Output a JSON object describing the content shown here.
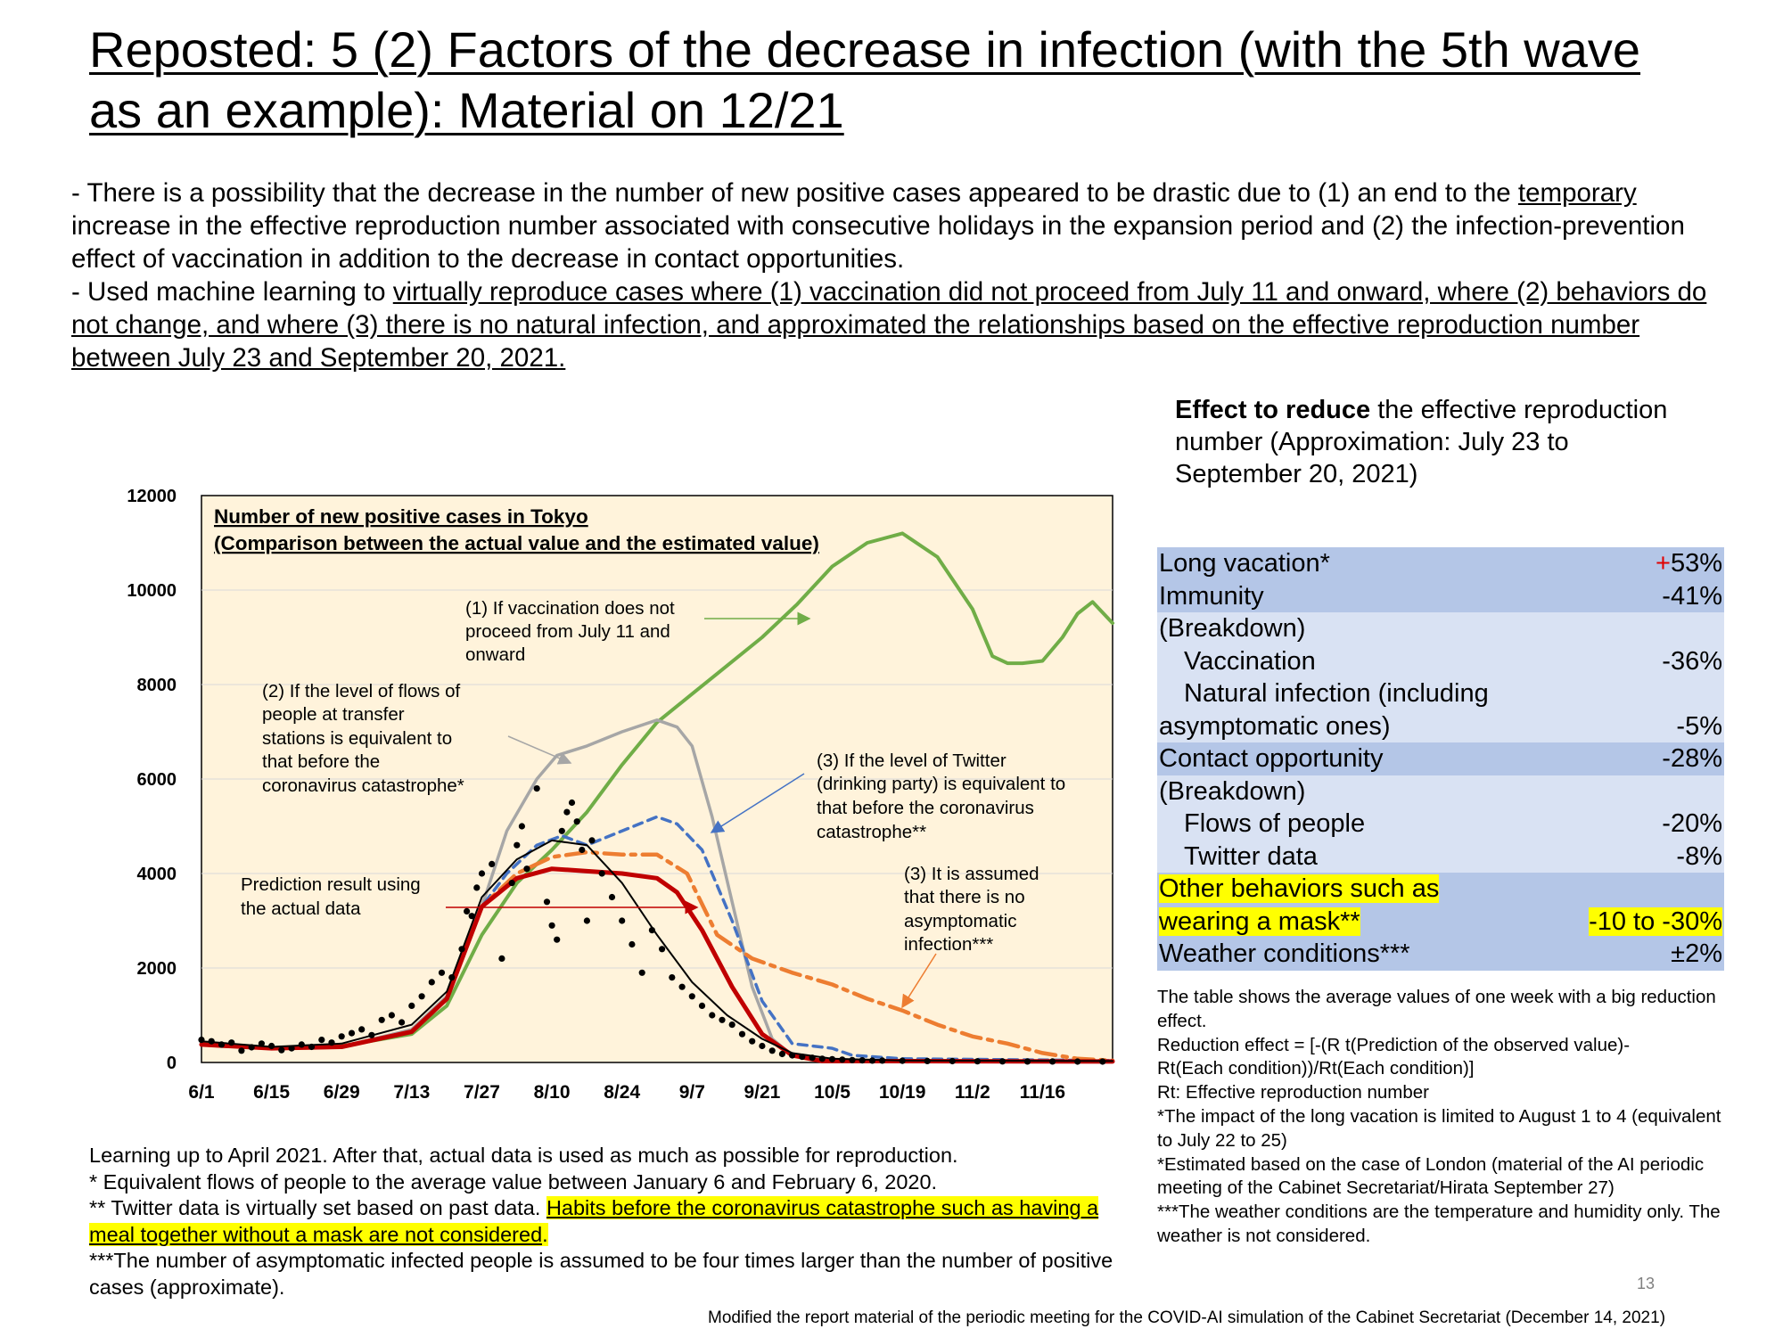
{
  "title": "Reposted: 5 (2) Factors of the decrease in infection (with the 5th wave as an example): Material on 12/21",
  "intro": {
    "p1_a": "- There is a possibility that the decrease in the number of new positive cases appeared to be drastic due to (1) an end to the ",
    "p1_u": "temporary",
    "p1_b": " increase in the effective reproduction number associated with consecutive holidays in the expansion period and (2) the infection-prevention effect of vaccination in addition to the decrease in contact opportunities.",
    "p2_a": "- Used machine learning to ",
    "p2_u": "virtually reproduce cases where (1) vaccination did not proceed from July 11 and onward, where (2) behaviors do not change, and where (3) there is no natural infection, and approximated the relationships based on the effective reproduction number between July 23 and September 20, 2021."
  },
  "chart_data": {
    "type": "line",
    "title": "Number of new positive cases in Tokyo",
    "subtitle": "(Comparison between the actual value and the estimated value)",
    "xlabel": "",
    "ylabel": "",
    "x_ticks": [
      "6/1",
      "6/15",
      "6/29",
      "7/13",
      "7/27",
      "8/10",
      "8/24",
      "9/7",
      "9/21",
      "10/5",
      "10/19",
      "11/2",
      "11/16"
    ],
    "y_ticks": [
      "0",
      "2000",
      "4000",
      "6000",
      "8000",
      "10000",
      "12000"
    ],
    "ylim": [
      0,
      12000
    ],
    "x_range_days": [
      0,
      182
    ],
    "background": "#fff3db",
    "series": [
      {
        "key": "vaccination",
        "color": "#70ad47",
        "style": "solid",
        "width": 4,
        "points": [
          [
            0,
            400
          ],
          [
            14,
            300
          ],
          [
            28,
            350
          ],
          [
            42,
            600
          ],
          [
            49,
            1200
          ],
          [
            56,
            2700
          ],
          [
            63,
            3800
          ],
          [
            70,
            4500
          ],
          [
            77,
            5300
          ],
          [
            84,
            6300
          ],
          [
            91,
            7200
          ],
          [
            98,
            7800
          ],
          [
            105,
            8400
          ],
          [
            112,
            9000
          ],
          [
            119,
            9700
          ],
          [
            126,
            10500
          ],
          [
            133,
            11000
          ],
          [
            140,
            11200
          ],
          [
            147,
            10700
          ],
          [
            154,
            9600
          ],
          [
            158,
            8600
          ],
          [
            161,
            8450
          ],
          [
            164,
            8450
          ],
          [
            168,
            8500
          ],
          [
            172,
            9000
          ],
          [
            175,
            9500
          ],
          [
            178,
            9750
          ],
          [
            182,
            9300
          ]
        ]
      },
      {
        "key": "flows",
        "color": "#a6a6a6",
        "style": "solid",
        "width": 3.5,
        "points": [
          [
            0,
            380
          ],
          [
            14,
            300
          ],
          [
            28,
            330
          ],
          [
            42,
            700
          ],
          [
            49,
            1400
          ],
          [
            56,
            3300
          ],
          [
            61,
            4900
          ],
          [
            67,
            6000
          ],
          [
            71,
            6500
          ],
          [
            77,
            6700
          ],
          [
            84,
            7000
          ],
          [
            91,
            7250
          ],
          [
            95,
            7100
          ],
          [
            98,
            6700
          ],
          [
            102,
            5200
          ],
          [
            106,
            3400
          ],
          [
            110,
            1600
          ],
          [
            114,
            500
          ],
          [
            118,
            150
          ],
          [
            122,
            60
          ],
          [
            130,
            30
          ]
        ]
      },
      {
        "key": "twitter",
        "color": "#4472c4",
        "style": "dashed",
        "width": 3.5,
        "points": [
          [
            0,
            380
          ],
          [
            14,
            300
          ],
          [
            28,
            330
          ],
          [
            42,
            650
          ],
          [
            49,
            1350
          ],
          [
            56,
            3300
          ],
          [
            61,
            4000
          ],
          [
            67,
            4600
          ],
          [
            72,
            4800
          ],
          [
            77,
            4600
          ],
          [
            84,
            4900
          ],
          [
            91,
            5200
          ],
          [
            95,
            5050
          ],
          [
            100,
            4500
          ],
          [
            106,
            3000
          ],
          [
            112,
            1300
          ],
          [
            118,
            400
          ],
          [
            126,
            300
          ],
          [
            130,
            150
          ],
          [
            140,
            80
          ],
          [
            182,
            40
          ]
        ]
      },
      {
        "key": "asymptomatic",
        "color": "#ed7d31",
        "style": "dashdot",
        "width": 4.5,
        "points": [
          [
            0,
            380
          ],
          [
            14,
            300
          ],
          [
            28,
            330
          ],
          [
            42,
            650
          ],
          [
            49,
            1350
          ],
          [
            56,
            3300
          ],
          [
            63,
            4000
          ],
          [
            70,
            4350
          ],
          [
            77,
            4450
          ],
          [
            84,
            4400
          ],
          [
            91,
            4400
          ],
          [
            97,
            4000
          ],
          [
            103,
            2700
          ],
          [
            110,
            2200
          ],
          [
            118,
            1900
          ],
          [
            126,
            1650
          ],
          [
            133,
            1350
          ],
          [
            140,
            1100
          ],
          [
            147,
            800
          ],
          [
            154,
            550
          ],
          [
            161,
            400
          ],
          [
            168,
            200
          ],
          [
            175,
            80
          ],
          [
            182,
            40
          ]
        ]
      },
      {
        "key": "actual_prediction",
        "color": "#c00000",
        "style": "solid",
        "width": 5,
        "points": [
          [
            0,
            380
          ],
          [
            14,
            300
          ],
          [
            28,
            330
          ],
          [
            42,
            650
          ],
          [
            49,
            1350
          ],
          [
            56,
            3300
          ],
          [
            63,
            3900
          ],
          [
            70,
            4100
          ],
          [
            77,
            4050
          ],
          [
            84,
            4000
          ],
          [
            91,
            3900
          ],
          [
            95,
            3600
          ],
          [
            100,
            2800
          ],
          [
            106,
            1600
          ],
          [
            112,
            600
          ],
          [
            118,
            150
          ],
          [
            124,
            30
          ],
          [
            182,
            20
          ]
        ]
      },
      {
        "key": "actual_black_line",
        "color": "#000000",
        "style": "solid",
        "width": 2,
        "points": [
          [
            0,
            450
          ],
          [
            14,
            330
          ],
          [
            28,
            400
          ],
          [
            42,
            800
          ],
          [
            49,
            1500
          ],
          [
            56,
            3500
          ],
          [
            63,
            4300
          ],
          [
            70,
            4700
          ],
          [
            77,
            4600
          ],
          [
            84,
            3800
          ],
          [
            91,
            2700
          ],
          [
            98,
            1700
          ],
          [
            105,
            1000
          ],
          [
            112,
            500
          ],
          [
            118,
            200
          ],
          [
            126,
            80
          ],
          [
            140,
            40
          ],
          [
            182,
            30
          ]
        ]
      }
    ],
    "actual_dots": [
      [
        0,
        480
      ],
      [
        2,
        450
      ],
      [
        4,
        380
      ],
      [
        6,
        420
      ],
      [
        8,
        250
      ],
      [
        10,
        320
      ],
      [
        12,
        400
      ],
      [
        14,
        350
      ],
      [
        16,
        260
      ],
      [
        18,
        300
      ],
      [
        20,
        380
      ],
      [
        22,
        330
      ],
      [
        24,
        480
      ],
      [
        26,
        420
      ],
      [
        28,
        550
      ],
      [
        30,
        620
      ],
      [
        32,
        700
      ],
      [
        34,
        580
      ],
      [
        36,
        900
      ],
      [
        38,
        1000
      ],
      [
        40,
        850
      ],
      [
        42,
        1200
      ],
      [
        44,
        1400
      ],
      [
        46,
        1700
      ],
      [
        48,
        1900
      ],
      [
        50,
        1800
      ],
      [
        52,
        2400
      ],
      [
        53,
        3200
      ],
      [
        54,
        3100
      ],
      [
        55,
        3700
      ],
      [
        56,
        4000
      ],
      [
        58,
        4200
      ],
      [
        60,
        2200
      ],
      [
        62,
        3800
      ],
      [
        63,
        4600
      ],
      [
        64,
        5000
      ],
      [
        65,
        4100
      ],
      [
        67,
        5800
      ],
      [
        69,
        3400
      ],
      [
        70,
        2900
      ],
      [
        71,
        2600
      ],
      [
        72,
        4900
      ],
      [
        73,
        5300
      ],
      [
        74,
        5500
      ],
      [
        75,
        5100
      ],
      [
        76,
        4500
      ],
      [
        77,
        3000
      ],
      [
        78,
        4700
      ],
      [
        80,
        4000
      ],
      [
        82,
        3500
      ],
      [
        84,
        3000
      ],
      [
        86,
        2500
      ],
      [
        88,
        1900
      ],
      [
        90,
        2800
      ],
      [
        92,
        2400
      ],
      [
        94,
        1800
      ],
      [
        96,
        1600
      ],
      [
        98,
        1400
      ],
      [
        100,
        1200
      ],
      [
        102,
        1000
      ],
      [
        104,
        900
      ],
      [
        106,
        800
      ],
      [
        108,
        600
      ],
      [
        110,
        450
      ],
      [
        112,
        350
      ],
      [
        114,
        250
      ],
      [
        116,
        180
      ],
      [
        118,
        150
      ],
      [
        120,
        120
      ],
      [
        122,
        100
      ],
      [
        124,
        80
      ],
      [
        126,
        70
      ],
      [
        128,
        60
      ],
      [
        130,
        50
      ],
      [
        132,
        45
      ],
      [
        134,
        40
      ],
      [
        136,
        40
      ],
      [
        140,
        35
      ],
      [
        145,
        30
      ],
      [
        150,
        28
      ],
      [
        155,
        25
      ],
      [
        160,
        22
      ],
      [
        165,
        20
      ],
      [
        170,
        20
      ],
      [
        175,
        18
      ],
      [
        180,
        18
      ]
    ],
    "annotations": {
      "a1": [
        "(1) If vaccination does not",
        "proceed from July 11 and",
        "onward"
      ],
      "a2": [
        "(2) If the level of flows of",
        "people at transfer",
        "stations is equivalent to",
        "that before the",
        "coronavirus catastrophe*"
      ],
      "a3t": [
        "(3) If the level of Twitter",
        "(drinking party) is equivalent to",
        "that before the coronavirus",
        "catastrophe**"
      ],
      "a3a": [
        "(3) It is assumed",
        "that there is no",
        "asymptomatic",
        "infection***"
      ],
      "a4": [
        "Prediction result using",
        "the actual data"
      ]
    }
  },
  "effect": {
    "heading_bold": "Effect to reduce",
    "heading_rest": " the effective reproduction number (Approximation: July 23 to September 20, 2021)",
    "rows": [
      {
        "label": "Long vacation*",
        "sign": "+",
        "value": "53%"
      },
      {
        "label": "Immunity",
        "value": "-41%"
      },
      {
        "label": "(Breakdown)",
        "value": ""
      },
      {
        "label": "Vaccination",
        "value": "-36%"
      },
      {
        "label": "Natural infection (including",
        "value": ""
      },
      {
        "label": "asymptomatic ones)",
        "value": "-5%"
      },
      {
        "label": "Contact opportunity",
        "value": "-28%"
      },
      {
        "label": "(Breakdown)",
        "value": ""
      },
      {
        "label": "Flows of people",
        "value": "-20%"
      },
      {
        "label": "Twitter data",
        "value": "-8%"
      },
      {
        "label": "Other behaviors such as",
        "value": ""
      },
      {
        "label": "wearing a mask**",
        "value": "-10 to -30%"
      },
      {
        "label": "Weather conditions***",
        "value": "±2%"
      }
    ]
  },
  "notes_right": {
    "l1": "The table shows the average values of one week with a big reduction effect.",
    "l2": "Reduction effect = [-(R t(Prediction of the observed value)-",
    "l3": "Rt(Each condition))/Rt(Each condition)]",
    "l4": "Rt: Effective reproduction number",
    "l5": "*The impact of the long vacation is limited to August 1 to 4 (equivalent to July 22 to 25)",
    "l6": "*Estimated based on the case of London (material of the AI periodic meeting of the Cabinet Secretariat/Hirata September 27)",
    "l7": "***The weather conditions are the temperature and humidity only. The weather is not considered."
  },
  "notes_left": {
    "l1": "Learning up to April 2021. After that, actual data is used as much as possible for reproduction.",
    "l2": "*    Equivalent flows of people to the average value between January 6 and February 6, 2020.",
    "l3a": "**  Twitter data is virtually set based on past data. ",
    "l3b": "Habits before the coronavirus catastrophe such as having a meal together without a mask are not considered",
    "l3c": ".",
    "l4": "***The number of asymptomatic infected people is assumed to be four times larger than the number of positive cases (approximate)."
  },
  "page_number": "13",
  "source": "Modified the report material of the periodic meeting for the COVID-AI simulation of the Cabinet Secretariat (December 14, 2021)"
}
